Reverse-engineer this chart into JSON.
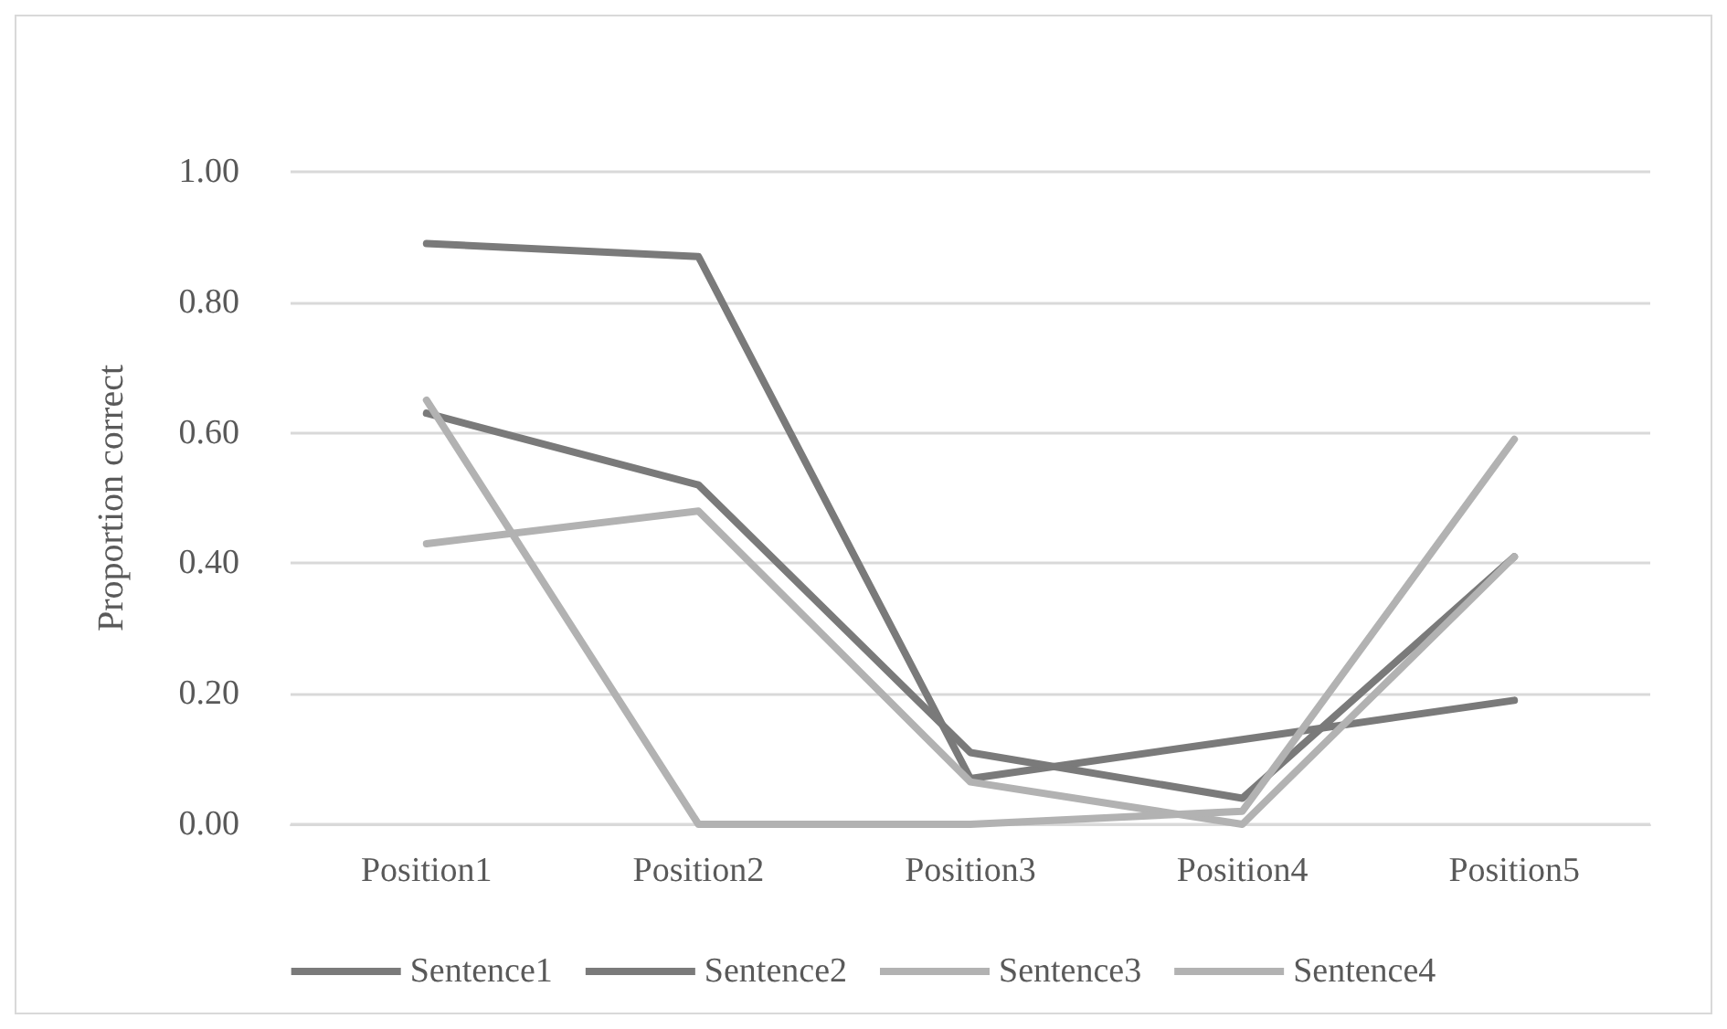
{
  "chart_data": {
    "type": "line",
    "ylabel": "Proportion correct",
    "categories": [
      "Position1",
      "Position2",
      "Position3",
      "Position4",
      "Position5"
    ],
    "series": [
      {
        "name": "Sentence1",
        "color": "#7a7a7a",
        "values": [
          0.89,
          0.87,
          0.07,
          0.13,
          0.19
        ]
      },
      {
        "name": "Sentence2",
        "color": "#7a7a7a",
        "values": [
          0.63,
          0.52,
          0.11,
          0.04,
          0.41
        ]
      },
      {
        "name": "Sentence3",
        "color": "#b2b2b2",
        "values": [
          0.43,
          0.48,
          0.065,
          0.0,
          0.41
        ]
      },
      {
        "name": "Sentence4",
        "color": "#b2b2b2",
        "values": [
          0.65,
          0.0,
          0.0,
          0.02,
          0.59
        ]
      }
    ],
    "ylim": [
      0,
      1
    ],
    "yticks": [
      {
        "value": 0,
        "label": "0.00"
      },
      {
        "value": 0.2,
        "label": "0.20"
      },
      {
        "value": 0.4,
        "label": "0.40"
      },
      {
        "value": 0.6,
        "label": "0.60"
      },
      {
        "value": 0.8,
        "label": "0.80"
      },
      {
        "value": 1,
        "label": "1.00"
      }
    ],
    "grid": "y",
    "legend": "bottom",
    "marker": "none",
    "line_style": "solid"
  }
}
